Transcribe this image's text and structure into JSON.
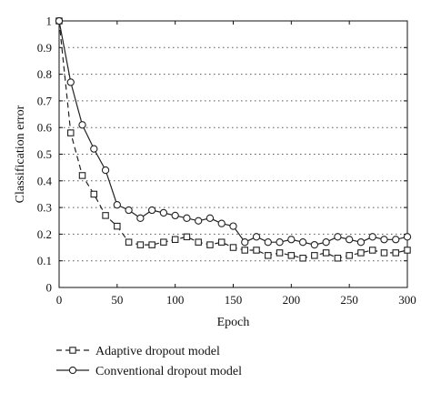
{
  "chart_data": {
    "type": "line",
    "xlabel": "Epoch",
    "ylabel": "Classification error",
    "xlim": [
      0,
      300
    ],
    "ylim": [
      0,
      1
    ],
    "x_ticks": [
      0,
      50,
      100,
      150,
      200,
      250,
      300
    ],
    "y_ticks": [
      0,
      0.1,
      0.2,
      0.3,
      0.4,
      0.5,
      0.6,
      0.7,
      0.8,
      0.9,
      1
    ],
    "grid": "horizontal dotted",
    "legend_placement": "bottom-left",
    "series": [
      {
        "name": "Adaptive dropout model",
        "style": "dashed",
        "marker": "square",
        "color": "#222222",
        "x": [
          0,
          10,
          20,
          30,
          40,
          50,
          60,
          70,
          80,
          90,
          100,
          110,
          120,
          130,
          140,
          150,
          160,
          170,
          180,
          190,
          200,
          210,
          220,
          230,
          240,
          250,
          260,
          270,
          280,
          290,
          300
        ],
        "values": [
          1.0,
          0.58,
          0.42,
          0.35,
          0.27,
          0.23,
          0.17,
          0.16,
          0.16,
          0.17,
          0.18,
          0.19,
          0.17,
          0.16,
          0.17,
          0.15,
          0.14,
          0.14,
          0.12,
          0.13,
          0.12,
          0.11,
          0.12,
          0.13,
          0.11,
          0.12,
          0.13,
          0.14,
          0.13,
          0.13,
          0.14
        ]
      },
      {
        "name": "Conventional dropout model",
        "style": "solid",
        "marker": "circle",
        "color": "#222222",
        "x": [
          0,
          10,
          20,
          30,
          40,
          50,
          60,
          70,
          80,
          90,
          100,
          110,
          120,
          130,
          140,
          150,
          160,
          170,
          180,
          190,
          200,
          210,
          220,
          230,
          240,
          250,
          260,
          270,
          280,
          290,
          300
        ],
        "values": [
          1.0,
          0.77,
          0.61,
          0.52,
          0.44,
          0.31,
          0.29,
          0.26,
          0.29,
          0.28,
          0.27,
          0.26,
          0.25,
          0.26,
          0.24,
          0.23,
          0.17,
          0.19,
          0.17,
          0.17,
          0.18,
          0.17,
          0.16,
          0.17,
          0.19,
          0.18,
          0.17,
          0.19,
          0.18,
          0.18,
          0.19
        ]
      }
    ]
  }
}
